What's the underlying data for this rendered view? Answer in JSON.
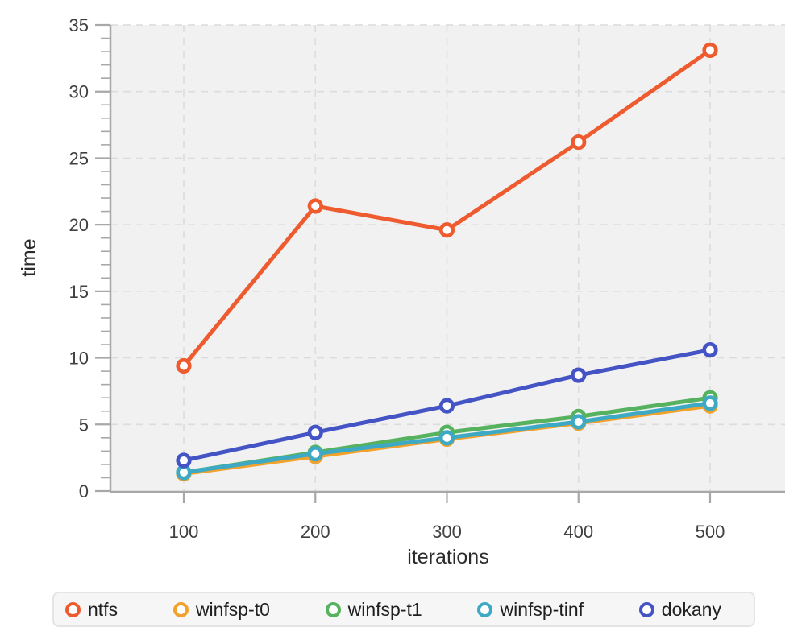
{
  "chart_data": {
    "type": "line",
    "title": "",
    "xlabel": "iterations",
    "ylabel": "time",
    "x": [
      100,
      200,
      300,
      400,
      500
    ],
    "xticks": [
      100,
      200,
      300,
      400,
      500
    ],
    "yticks": [
      0,
      5,
      10,
      15,
      20,
      25,
      30,
      35
    ],
    "y_minor_step": 1,
    "xlim": [
      44,
      557
    ],
    "ylim": [
      0,
      35
    ],
    "grid": "dashed",
    "legend_position": "bottom",
    "marker": "open-circle",
    "series": [
      {
        "name": "ntfs",
        "color": "#EE5B2F",
        "values": [
          9.4,
          21.4,
          19.6,
          26.2,
          33.1
        ]
      },
      {
        "name": "winfsp-t0",
        "color": "#F2A22B",
        "values": [
          1.3,
          2.6,
          3.9,
          5.1,
          6.4
        ]
      },
      {
        "name": "winfsp-t1",
        "color": "#56B25F",
        "values": [
          1.4,
          2.9,
          4.4,
          5.6,
          7.0
        ]
      },
      {
        "name": "winfsp-tinf",
        "color": "#3DA9C4",
        "values": [
          1.4,
          2.8,
          4.0,
          5.2,
          6.6
        ]
      },
      {
        "name": "dokany",
        "color": "#4454C4",
        "values": [
          2.3,
          4.4,
          6.4,
          8.7,
          10.6
        ]
      }
    ]
  },
  "style_colors": {
    "plot_background": "#f1f1f2",
    "grid_line": "#dcdcdc",
    "spine": "#a8a8a8",
    "tick": "#a8a8a8",
    "marker_fill": "#ffffff"
  }
}
